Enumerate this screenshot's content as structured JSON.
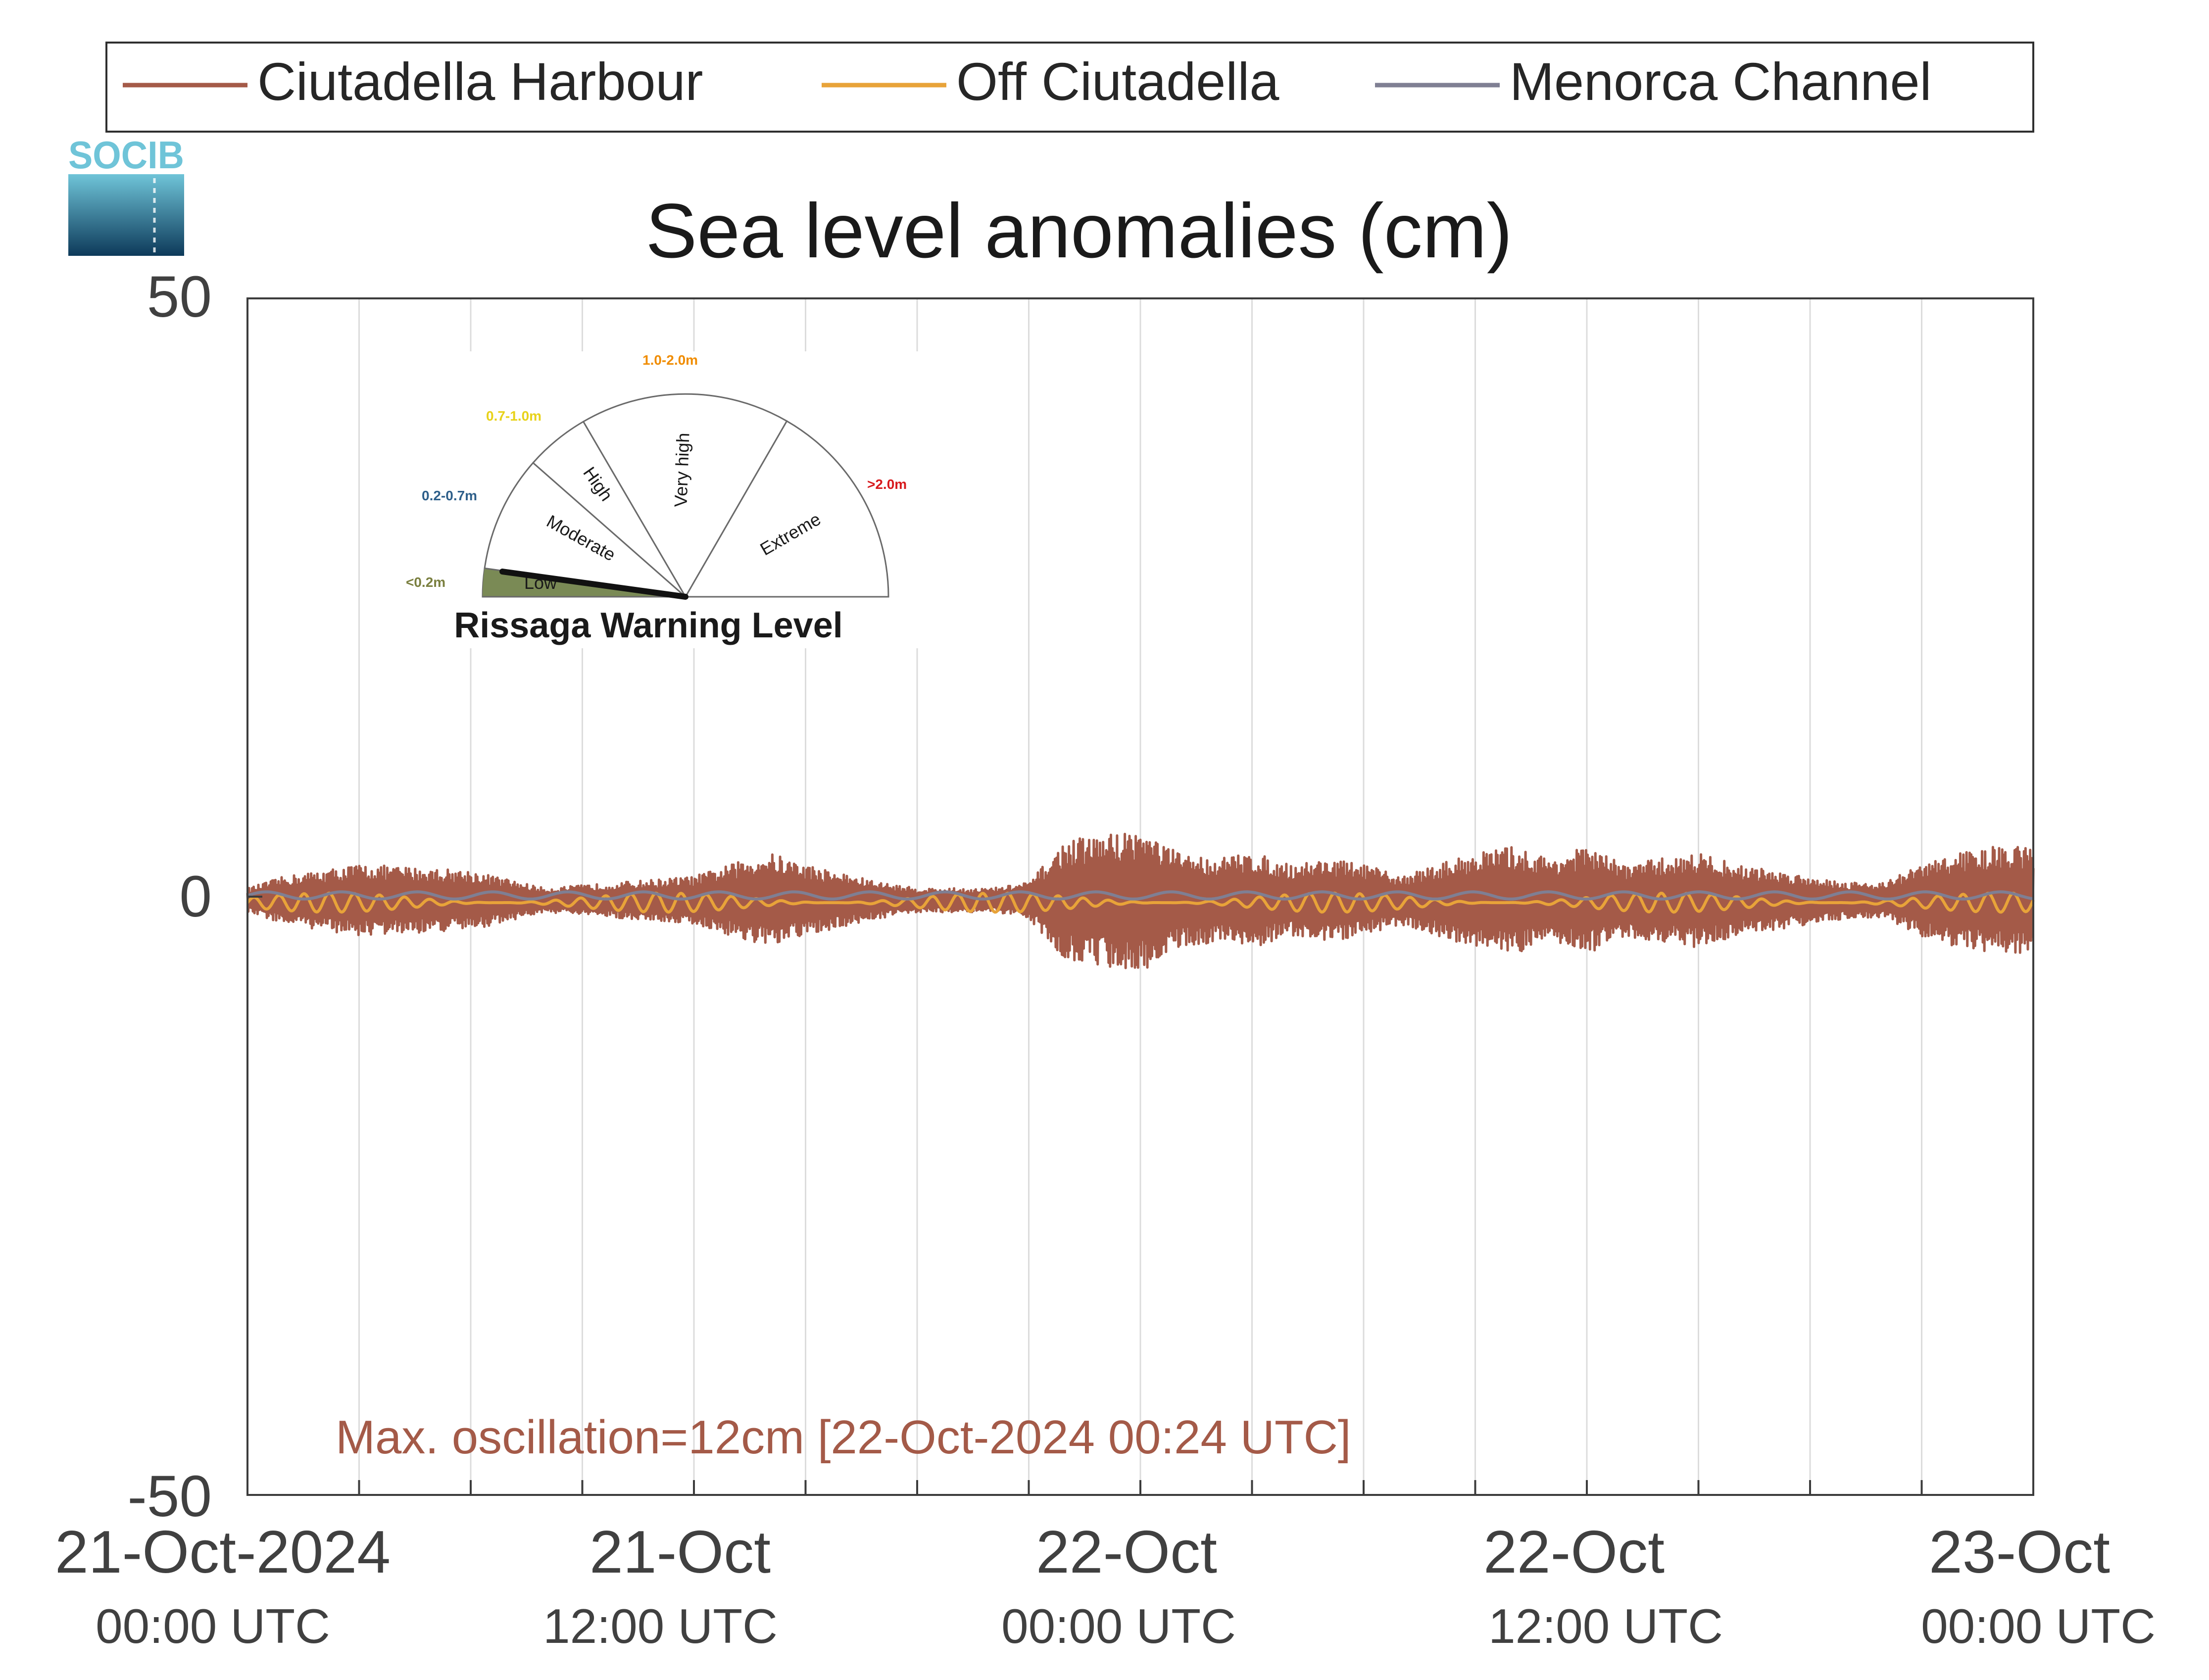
{
  "chart_data": {
    "type": "line",
    "title": "Sea level anomalies (cm)",
    "xlabel": "",
    "ylabel": "",
    "ylim": [
      -50,
      50
    ],
    "yticks": [
      50,
      0,
      -50
    ],
    "ytick_labels": [
      "50",
      "0",
      "-50"
    ],
    "xlim": [
      "2024-10-21 00:00",
      "2024-10-23 00:00"
    ],
    "xticks": [
      {
        "date": "2024-10-21 00:00",
        "line1": "21-Oct-2024",
        "line2": "00:00 UTC"
      },
      {
        "date": "2024-10-21 12:00",
        "line1": "21-Oct",
        "line2": "12:00 UTC"
      },
      {
        "date": "2024-10-22 00:00",
        "line1": "22-Oct",
        "line2": "00:00 UTC"
      },
      {
        "date": "2024-10-22 12:00",
        "line1": "22-Oct",
        "line2": "12:00 UTC"
      },
      {
        "date": "2024-10-23 00:00",
        "line1": "23-Oct",
        "line2": "00:00 UTC"
      }
    ],
    "grid": "vertical lines every 3 hours",
    "legend_position": "top",
    "series": [
      {
        "name": "Ciutadella Harbour",
        "color": "#a45a48",
        "oscillation_envelope": {
          "hours": [
            0,
            1,
            3,
            6,
            8,
            10,
            12,
            14,
            15,
            17,
            18,
            19,
            20,
            21,
            22,
            23,
            24,
            25,
            26,
            27,
            28,
            29,
            30,
            31,
            32,
            33,
            34,
            35,
            36,
            37,
            38,
            39,
            40,
            41,
            42,
            43,
            44,
            45,
            46,
            47,
            48
          ],
          "amplitude_cm": [
            1,
            2,
            3,
            2.5,
            1,
            1.5,
            2,
            4,
            3,
            1.5,
            1,
            1,
            1,
            1.5,
            5,
            5.5,
            6,
            4,
            3.5,
            4,
            3,
            3.5,
            3,
            2,
            3,
            4,
            4.5,
            3.5,
            4.5,
            3,
            3.5,
            4,
            3,
            2.5,
            2,
            1.5,
            1.5,
            3,
            4,
            4.5,
            4.5
          ]
        }
      },
      {
        "name": "Off Ciutadella",
        "color": "#e8a339",
        "approx_amplitude_cm": 0.8
      },
      {
        "name": "Menorca Channel",
        "color": "#7f7f93",
        "approx_amplitude_cm": 0.3
      }
    ],
    "annotation": "Max. oscillation=12cm [22-Oct-2024 00:24 UTC]",
    "annotation_color": "#a45a48"
  },
  "logo": {
    "text": "SOCIB"
  },
  "gauge": {
    "title": "Rissaga Warning Level",
    "current_level": "Low",
    "segments": [
      {
        "name": "Low",
        "range": "<0.2m",
        "color": "#7a7f3f"
      },
      {
        "name": "Moderate",
        "range": "0.2-0.7m",
        "color": "#2e5f8a"
      },
      {
        "name": "High",
        "range": "0.7-1.0m",
        "color": "#e8d21a"
      },
      {
        "name": "Very high",
        "range": "1.0-2.0m",
        "color": "#f08c00"
      },
      {
        "name": "Extreme",
        "range": ">2.0m",
        "color": "#d7191c"
      }
    ]
  }
}
